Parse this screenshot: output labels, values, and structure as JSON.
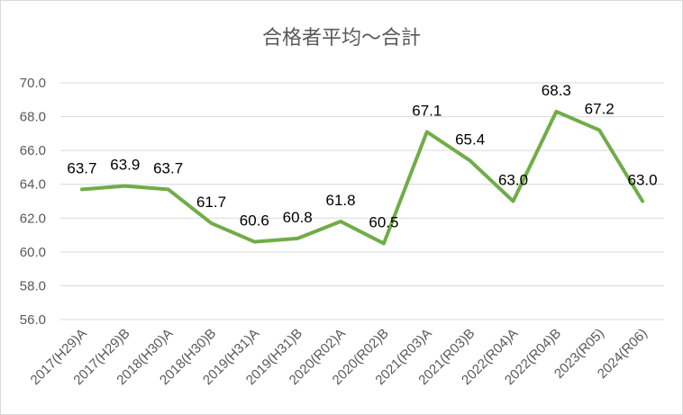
{
  "chart_data": {
    "type": "line",
    "title": "合格者平均～合計",
    "categories": [
      "2017(H29)A",
      "2017(H29)B",
      "2018(H30)A",
      "2018(H30)B",
      "2019(H31)A",
      "2019(H31)B",
      "2020(R02)A",
      "2020(R02)B",
      "2021(R03)A",
      "2021(R03)B",
      "2022(R04)A",
      "2022(R04)B",
      "2023(R05)",
      "2024(R06)"
    ],
    "values": [
      63.7,
      63.9,
      63.7,
      61.7,
      60.6,
      60.8,
      61.8,
      60.5,
      67.1,
      65.4,
      63.0,
      68.3,
      67.2,
      63.0
    ],
    "value_labels": [
      "63.7",
      "63.9",
      "63.7",
      "61.7",
      "60.6",
      "60.8",
      "61.8",
      "60.5",
      "67.1",
      "65.4",
      "63.0",
      "68.3",
      "67.2",
      "63.0"
    ],
    "ylim": [
      56,
      70
    ],
    "y_ticks": [
      "56.0",
      "58.0",
      "60.0",
      "62.0",
      "64.0",
      "66.0",
      "68.0",
      "70.0"
    ],
    "grid": true,
    "legend": false,
    "line_color": "#70ad47"
  }
}
